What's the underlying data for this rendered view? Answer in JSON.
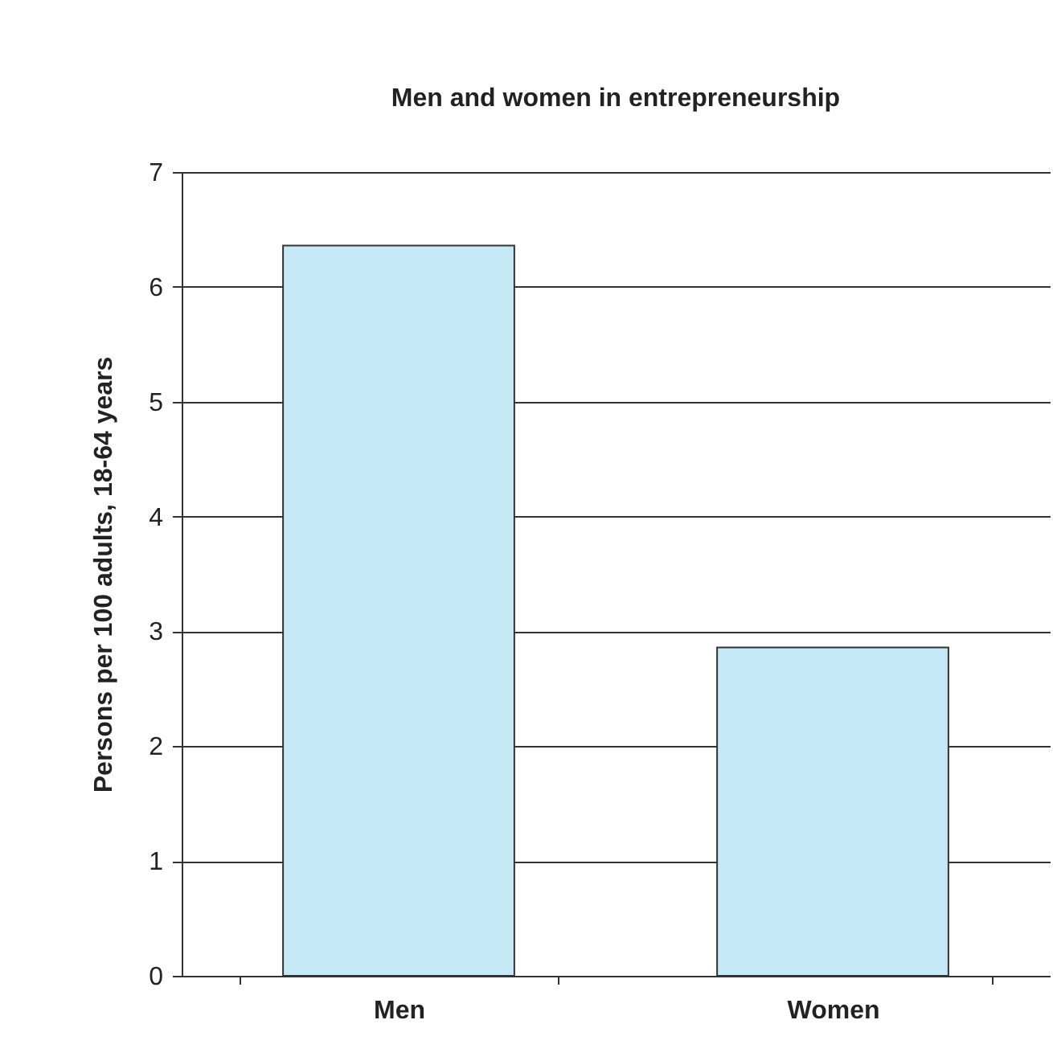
{
  "chart_data": {
    "type": "bar",
    "title": "Men and women in entrepreneurship",
    "ylabel": "Persons per 100 adults, 18-64 years",
    "categories": [
      "Men",
      "Women"
    ],
    "values": [
      6.36,
      2.86
    ],
    "color": "#c6e9f8",
    "ylim": [
      0,
      7
    ],
    "yticks": [
      0,
      1,
      2,
      3,
      4,
      5,
      6,
      7
    ],
    "grid": "y"
  }
}
